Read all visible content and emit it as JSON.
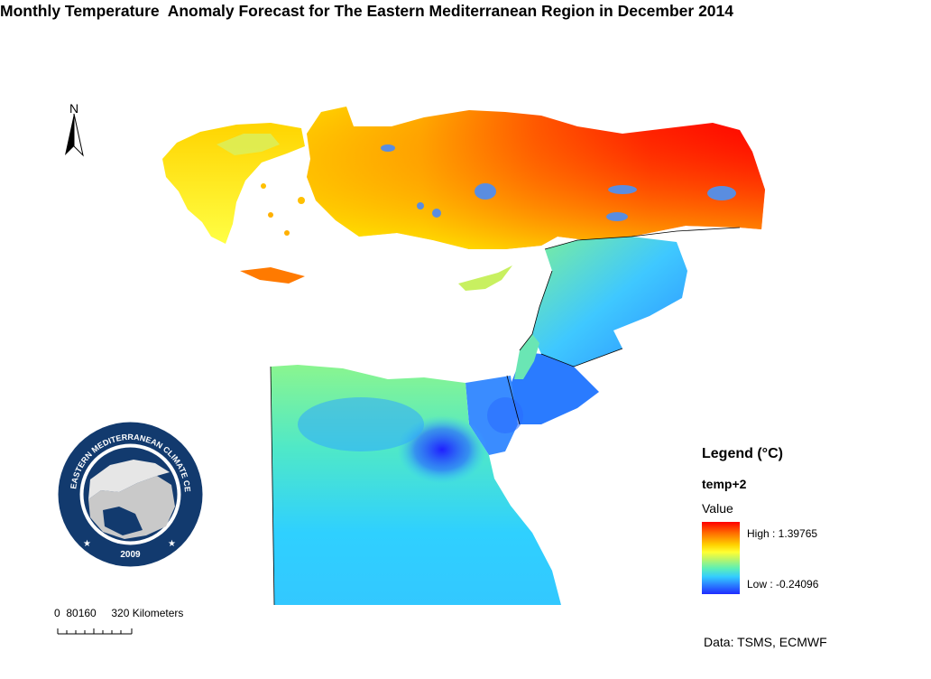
{
  "title": "Monthly Temperature  Anomaly Forecast for The Eastern Mediterranean Region in December 2014",
  "north_label": "N",
  "legend": {
    "title": "Legend (°C)",
    "layer": "temp+2",
    "value_label": "Value",
    "high_label": "High : 1.39765",
    "low_label": "Low : -0.24096",
    "high": 1.39765,
    "low": -0.24096,
    "colors": [
      "#ff0000",
      "#ff6a00",
      "#ffd200",
      "#ffff33",
      "#b9f56a",
      "#5ff0b4",
      "#33ccff",
      "#2a7bff",
      "#1f2bff"
    ]
  },
  "scale_bar": {
    "ticks": "0  80160     320 Kilometers"
  },
  "logo": {
    "ring_text": "EASTERN MEDITERRANEAN CLIMATE CENTRE",
    "year": "2009"
  },
  "source": "Data: TSMS, ECMWF",
  "ocean": "#ffffff"
}
